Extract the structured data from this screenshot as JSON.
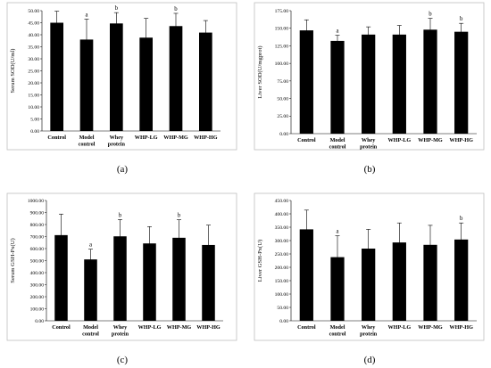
{
  "chart_data": [
    {
      "type": "bar",
      "panel_label": "(a)",
      "ylabel": "Serum SOD(U/ml)",
      "categories": [
        [
          "Control"
        ],
        [
          "Model",
          "control"
        ],
        [
          "Whey",
          "protein"
        ],
        [
          "WHP-LG"
        ],
        [
          "WHP-MG"
        ],
        [
          "WHP-HG"
        ]
      ],
      "values": [
        45.0,
        38.0,
        44.7,
        38.8,
        43.6,
        40.9
      ],
      "errors": [
        4.8,
        8.5,
        4.5,
        8.0,
        5.3,
        5.0
      ],
      "significance": [
        "",
        "a",
        "b",
        "",
        "b",
        ""
      ],
      "ylim": [
        0,
        50
      ],
      "yticks": [
        "0.00",
        "5.00",
        "10.00",
        "15.00",
        "20.00",
        "25.00",
        "30.00",
        "35.00",
        "40.00",
        "45.00",
        "50.00"
      ],
      "bar_color": "#000000",
      "grid": false
    },
    {
      "type": "bar",
      "panel_label": "(b)",
      "ylabel": "Liver SOD(U/mgprot)",
      "categories": [
        [
          "Control"
        ],
        [
          "Model",
          "control"
        ],
        [
          "Whey",
          "protein"
        ],
        [
          "WHP-LG"
        ],
        [
          "WHP-MG"
        ],
        [
          "WHP-HG"
        ]
      ],
      "values": [
        147,
        132,
        141,
        141,
        148,
        145
      ],
      "errors": [
        15,
        8,
        11,
        13,
        16,
        12
      ],
      "significance": [
        "",
        "a",
        "",
        "",
        "b",
        "b"
      ],
      "ylim": [
        0,
        175
      ],
      "yticks": [
        "0.00",
        "25.00",
        "50.00",
        "75.00",
        "100.00",
        "125.00",
        "150.00",
        "175.00"
      ],
      "bar_color": "#000000",
      "grid": false
    },
    {
      "type": "bar",
      "panel_label": "(c)",
      "ylabel": "Serum GSH-Px(U)",
      "categories": [
        [
          "Control"
        ],
        [
          "Model",
          "control"
        ],
        [
          "Whey",
          "protein"
        ],
        [
          "WHP-LG"
        ],
        [
          "WHP-MG"
        ],
        [
          "WHP-HG"
        ]
      ],
      "values": [
        712,
        510,
        702,
        643,
        690,
        630
      ],
      "errors": [
        175,
        85,
        140,
        140,
        150,
        165
      ],
      "significance": [
        "",
        "a",
        "b",
        "",
        "b",
        ""
      ],
      "ylim": [
        0,
        1000
      ],
      "yticks": [
        "0.00",
        "100.00",
        "200.00",
        "300.00",
        "400.00",
        "500.00",
        "600.00",
        "700.00",
        "800.00",
        "900.00",
        "1000.00"
      ],
      "bar_color": "#000000",
      "grid": false
    },
    {
      "type": "bar",
      "panel_label": "(d)",
      "ylabel": "Liver GSH-Px(U)",
      "categories": [
        [
          "Control"
        ],
        [
          "Model",
          "control"
        ],
        [
          "Whey",
          "protein"
        ],
        [
          "WHP-LG"
        ],
        [
          "WHP-MG"
        ],
        [
          "WHP-HG"
        ]
      ],
      "values": [
        342,
        238,
        270,
        293,
        284,
        304
      ],
      "errors": [
        72,
        80,
        72,
        73,
        73,
        62
      ],
      "significance": [
        "",
        "a",
        "",
        "",
        "",
        "b"
      ],
      "ylim": [
        0,
        450
      ],
      "yticks": [
        "0.00",
        "50.00",
        "100.00",
        "150.00",
        "200.00",
        "250.00",
        "300.00",
        "350.00",
        "400.00",
        "450.00"
      ],
      "bar_color": "#000000",
      "grid": false
    }
  ]
}
